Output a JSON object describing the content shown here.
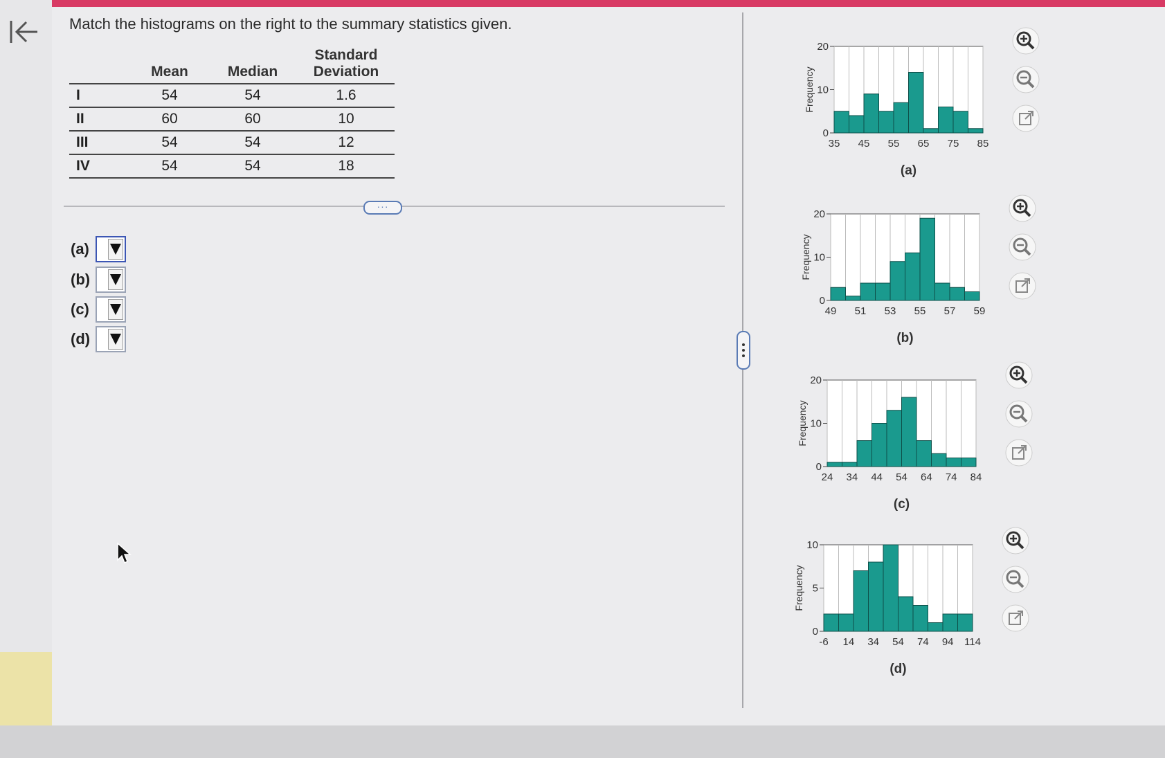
{
  "question": "Match the histograms on the right to the summary statistics given.",
  "table": {
    "headers": [
      "",
      "Mean",
      "Median",
      "Standard Deviation"
    ],
    "rows": [
      {
        "label": "I",
        "mean": "54",
        "median": "54",
        "sd": "1.6"
      },
      {
        "label": "II",
        "mean": "60",
        "median": "60",
        "sd": "10"
      },
      {
        "label": "III",
        "mean": "54",
        "median": "54",
        "sd": "12"
      },
      {
        "label": "IV",
        "mean": "54",
        "median": "54",
        "sd": "18"
      }
    ]
  },
  "answers": [
    {
      "label": "(a)",
      "selected": ""
    },
    {
      "label": "(b)",
      "selected": ""
    },
    {
      "label": "(c)",
      "selected": ""
    },
    {
      "label": "(d)",
      "selected": ""
    }
  ],
  "colors": {
    "bar": "#1a9a8e",
    "accent": "#d83a64",
    "focus": "#3c56b4"
  },
  "icons": {
    "back": "collapse-left-icon",
    "zoom_in": "zoom-in-icon",
    "zoom_out": "zoom-out-icon",
    "popout": "open-in-new-icon"
  },
  "chart_data": [
    {
      "type": "bar",
      "caption": "(a)",
      "ylabel": "Frequency",
      "ylim": [
        0,
        20
      ],
      "yticks": [
        "0",
        "10",
        "20"
      ],
      "xticks": [
        "35",
        "45",
        "55",
        "65",
        "75",
        "85"
      ],
      "bin_edges": [
        35,
        40,
        45,
        50,
        55,
        60,
        65,
        70,
        75,
        80,
        85
      ],
      "values": [
        5,
        4,
        9,
        5,
        7,
        14,
        1,
        6,
        5,
        1
      ]
    },
    {
      "type": "bar",
      "caption": "(b)",
      "ylabel": "Frequency",
      "ylim": [
        0,
        20
      ],
      "yticks": [
        "0",
        "10",
        "20"
      ],
      "xticks": [
        "49",
        "51",
        "53",
        "55",
        "57",
        "59"
      ],
      "bin_edges": [
        49,
        50,
        51,
        52,
        53,
        54,
        55,
        56,
        57,
        58,
        59
      ],
      "values": [
        3,
        1,
        4,
        4,
        9,
        11,
        19,
        4,
        3,
        2
      ]
    },
    {
      "type": "bar",
      "caption": "(c)",
      "ylabel": "Frequency",
      "ylim": [
        0,
        20
      ],
      "yticks": [
        "0",
        "10",
        "20"
      ],
      "xticks": [
        "24",
        "34",
        "44",
        "54",
        "64",
        "74",
        "84"
      ],
      "bin_edges": [
        24,
        30,
        36,
        42,
        48,
        54,
        60,
        66,
        72,
        78,
        84
      ],
      "values": [
        1,
        1,
        6,
        10,
        13,
        16,
        6,
        3,
        2,
        2
      ]
    },
    {
      "type": "bar",
      "caption": "(d)",
      "ylabel": "Frequency",
      "ylim": [
        0,
        10
      ],
      "yticks": [
        "0",
        "5",
        "10"
      ],
      "xticks": [
        "-6",
        "14",
        "34",
        "54",
        "74",
        "94",
        "114"
      ],
      "bin_edges": [
        -6,
        6,
        18,
        30,
        42,
        54,
        66,
        78,
        90,
        102,
        114
      ],
      "values": [
        2,
        2,
        7,
        8,
        10,
        4,
        3,
        1,
        2,
        2
      ]
    }
  ]
}
